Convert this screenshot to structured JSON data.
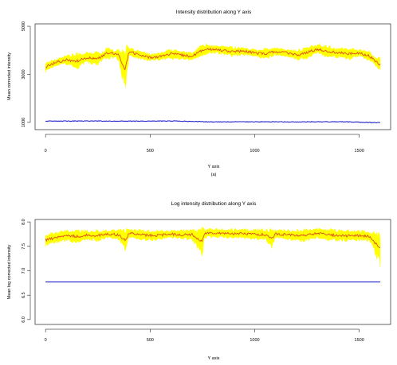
{
  "chart_data": [
    {
      "type": "line",
      "title": "Intensity distribution along Y axis",
      "xlabel": "Y axis",
      "ylabel": "Mean corrected intensity",
      "caption": "(a)",
      "xlim": [
        -50,
        1650
      ],
      "ylim": [
        700,
        5100
      ],
      "xticks": [
        0,
        500,
        1000,
        1500
      ],
      "yticks": [
        1000,
        3000,
        5000
      ],
      "colors": {
        "band": "#ffff00",
        "mean": "#e0501a",
        "baseline": "#2222cc"
      },
      "series": [
        {
          "role": "band",
          "x": [
            0,
            100,
            200,
            300,
            400,
            500,
            600,
            700,
            800,
            900,
            1000,
            1100,
            1200,
            1300,
            1400,
            1500,
            1600
          ],
          "values": [
            3350,
            3650,
            3750,
            3800,
            3950,
            3700,
            3800,
            3750,
            4050,
            4000,
            3900,
            3950,
            3850,
            4100,
            3950,
            3900,
            3500
          ]
        },
        {
          "role": "mean",
          "x": [
            0,
            50,
            100,
            150,
            200,
            250,
            300,
            350,
            380,
            400,
            450,
            500,
            550,
            600,
            650,
            700,
            750,
            800,
            850,
            900,
            950,
            1000,
            1050,
            1100,
            1150,
            1200,
            1250,
            1300,
            1350,
            1400,
            1450,
            1500,
            1550,
            1600
          ],
          "values": [
            3300,
            3500,
            3600,
            3550,
            3700,
            3650,
            3900,
            3800,
            3200,
            3950,
            3800,
            3700,
            3750,
            3850,
            3800,
            3750,
            4000,
            4050,
            4000,
            3950,
            3950,
            3900,
            3850,
            3950,
            3900,
            3800,
            3900,
            4050,
            3950,
            3900,
            3850,
            3900,
            3750,
            3400
          ]
        },
        {
          "role": "baseline",
          "x": [
            0,
            200,
            400,
            600,
            800,
            1000,
            1200,
            1400,
            1600
          ],
          "values": [
            1050,
            1060,
            1050,
            1060,
            1020,
            1030,
            1020,
            1030,
            990
          ]
        }
      ]
    },
    {
      "type": "line",
      "title": "Log intensity distribution along Y axis",
      "xlabel": "Y axis",
      "ylabel": "Mean log corrected intensity",
      "xlim": [
        -50,
        1650
      ],
      "ylim": [
        5.9,
        8.05
      ],
      "xticks": [
        0,
        500,
        1000,
        1500
      ],
      "yticks": [
        6.0,
        6.5,
        7.0,
        7.5,
        8.0
      ],
      "colors": {
        "band": "#ffff00",
        "mean": "#e0501a",
        "baseline": "#2222cc"
      },
      "series": [
        {
          "role": "band",
          "x": [
            0,
            100,
            200,
            300,
            400,
            500,
            600,
            700,
            800,
            900,
            1000,
            1100,
            1200,
            1300,
            1400,
            1500,
            1600
          ],
          "values": [
            7.67,
            7.75,
            7.75,
            7.76,
            7.78,
            7.75,
            7.75,
            7.77,
            7.8,
            7.78,
            7.78,
            7.76,
            7.76,
            7.79,
            7.76,
            7.75,
            7.7
          ]
        },
        {
          "role": "mean",
          "x": [
            0,
            50,
            100,
            150,
            200,
            250,
            300,
            350,
            380,
            400,
            450,
            500,
            550,
            600,
            650,
            700,
            750,
            760,
            800,
            850,
            900,
            950,
            1000,
            1050,
            1080,
            1100,
            1150,
            1200,
            1250,
            1300,
            1350,
            1400,
            1450,
            1500,
            1550,
            1600
          ],
          "values": [
            7.63,
            7.68,
            7.72,
            7.7,
            7.73,
            7.72,
            7.75,
            7.74,
            7.62,
            7.77,
            7.74,
            7.72,
            7.73,
            7.75,
            7.74,
            7.74,
            7.6,
            7.76,
            7.78,
            7.77,
            7.76,
            7.76,
            7.75,
            7.74,
            7.65,
            7.75,
            7.74,
            7.72,
            7.73,
            7.77,
            7.74,
            7.72,
            7.72,
            7.72,
            7.7,
            7.45
          ]
        },
        {
          "role": "baseline",
          "x": [
            0,
            1600
          ],
          "values": [
            6.77,
            6.77
          ]
        }
      ]
    }
  ]
}
